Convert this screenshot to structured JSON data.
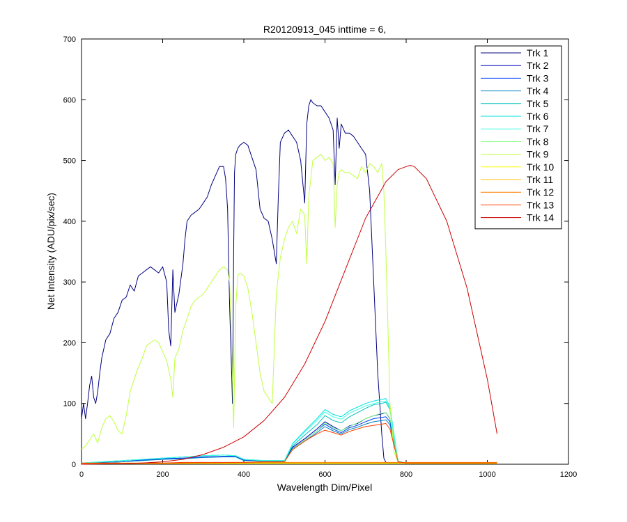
{
  "chart_data": {
    "type": "line",
    "title": "R20120913_045 inttime = 6,",
    "xlabel": "Wavelength Dim/Pixel",
    "ylabel": "Net Intensity (ADU/pix/sec)",
    "xlim": [
      0,
      1200
    ],
    "ylim": [
      0,
      700
    ],
    "xticks": [
      0,
      200,
      400,
      600,
      800,
      1000,
      1200
    ],
    "yticks": [
      0,
      100,
      200,
      300,
      400,
      500,
      600,
      700
    ],
    "grid": false,
    "legend_position": "top-right",
    "series": [
      {
        "name": "Trk 1",
        "color": "#00007f",
        "x": [
          0,
          5,
          10,
          15,
          20,
          25,
          30,
          35,
          40,
          45,
          50,
          60,
          70,
          80,
          90,
          100,
          110,
          120,
          130,
          140,
          150,
          160,
          170,
          180,
          190,
          200,
          210,
          215,
          220,
          225,
          230,
          240,
          250,
          255,
          260,
          270,
          280,
          290,
          300,
          310,
          320,
          330,
          340,
          350,
          355,
          360,
          365,
          370,
          372,
          375,
          377,
          380,
          385,
          390,
          400,
          410,
          420,
          430,
          440,
          450,
          460,
          470,
          475,
          480,
          485,
          490,
          500,
          510,
          520,
          530,
          540,
          550,
          555,
          560,
          565,
          570,
          580,
          590,
          600,
          610,
          620,
          625,
          630,
          635,
          640,
          650,
          660,
          670,
          680,
          690,
          700,
          710,
          720,
          730,
          740,
          745,
          750,
          755,
          760,
          765,
          770,
          780,
          800,
          850,
          900,
          950,
          1000,
          1024
        ],
        "y": [
          75,
          100,
          75,
          100,
          130,
          145,
          110,
          100,
          120,
          150,
          175,
          205,
          215,
          240,
          250,
          270,
          275,
          295,
          285,
          310,
          315,
          320,
          325,
          320,
          315,
          325,
          300,
          220,
          195,
          320,
          250,
          280,
          330,
          370,
          400,
          410,
          415,
          420,
          430,
          440,
          460,
          475,
          490,
          490,
          470,
          420,
          260,
          150,
          100,
          350,
          480,
          510,
          520,
          525,
          530,
          525,
          505,
          485,
          420,
          405,
          400,
          370,
          350,
          330,
          440,
          530,
          545,
          550,
          540,
          530,
          500,
          430,
          560,
          590,
          600,
          595,
          590,
          590,
          580,
          570,
          550,
          460,
          570,
          520,
          560,
          545,
          545,
          540,
          530,
          520,
          510,
          450,
          300,
          150,
          50,
          10,
          3,
          2,
          2,
          2,
          2,
          2,
          2,
          2,
          2,
          2,
          2,
          2
        ]
      },
      {
        "name": "Trk 2",
        "color": "#0000bf",
        "x": [
          0,
          50,
          100,
          150,
          200,
          250,
          300,
          350,
          380,
          400,
          450,
          500,
          520,
          550,
          580,
          600,
          620,
          640,
          660,
          680,
          700,
          720,
          740,
          750,
          760,
          780,
          800,
          1024
        ],
        "y": [
          2,
          3,
          4,
          7,
          9,
          10,
          12,
          13,
          13,
          7,
          5,
          5,
          28,
          42,
          58,
          70,
          62,
          55,
          63,
          67,
          75,
          80,
          83,
          85,
          75,
          4,
          2,
          2
        ]
      },
      {
        "name": "Trk 3",
        "color": "#003fff",
        "x": [
          0,
          50,
          100,
          150,
          200,
          250,
          300,
          350,
          380,
          400,
          450,
          500,
          520,
          550,
          580,
          600,
          620,
          640,
          660,
          680,
          700,
          720,
          740,
          750,
          760,
          780,
          800,
          1024
        ],
        "y": [
          2,
          3,
          4,
          7,
          9,
          10,
          12,
          13,
          13,
          7,
          5,
          5,
          26,
          40,
          55,
          66,
          58,
          52,
          60,
          64,
          70,
          75,
          77,
          78,
          70,
          4,
          2,
          2
        ]
      },
      {
        "name": "Trk 4",
        "color": "#007fbf",
        "x": [
          0,
          50,
          100,
          150,
          200,
          250,
          300,
          350,
          380,
          400,
          450,
          500,
          520,
          550,
          580,
          600,
          620,
          640,
          660,
          680,
          700,
          720,
          740,
          750,
          760,
          780,
          800,
          1024
        ],
        "y": [
          2,
          3,
          4,
          6,
          8,
          9,
          11,
          12,
          12,
          6,
          5,
          5,
          24,
          38,
          52,
          62,
          55,
          50,
          57,
          61,
          66,
          70,
          72,
          73,
          65,
          4,
          2,
          2
        ]
      },
      {
        "name": "Trk 5",
        "color": "#00bfbf",
        "x": [
          0,
          50,
          100,
          150,
          200,
          250,
          300,
          350,
          380,
          400,
          450,
          500,
          520,
          550,
          580,
          600,
          620,
          640,
          660,
          680,
          700,
          720,
          740,
          750,
          760,
          780,
          800,
          1024
        ],
        "y": [
          2,
          4,
          6,
          8,
          10,
          12,
          14,
          15,
          14,
          8,
          6,
          6,
          30,
          48,
          65,
          80,
          72,
          68,
          78,
          85,
          92,
          98,
          100,
          102,
          90,
          5,
          2,
          2
        ]
      },
      {
        "name": "Trk 6",
        "color": "#00dfdf",
        "x": [
          0,
          50,
          100,
          150,
          200,
          250,
          300,
          350,
          380,
          400,
          450,
          500,
          520,
          550,
          580,
          600,
          620,
          640,
          660,
          680,
          700,
          720,
          740,
          750,
          760,
          780,
          800,
          1024
        ],
        "y": [
          2,
          4,
          6,
          8,
          10,
          12,
          14,
          15,
          14,
          8,
          6,
          6,
          34,
          55,
          75,
          90,
          82,
          78,
          88,
          94,
          100,
          104,
          107,
          108,
          95,
          5,
          2,
          2
        ]
      },
      {
        "name": "Trk 7",
        "color": "#3fffdf",
        "x": [
          0,
          50,
          100,
          150,
          200,
          250,
          300,
          350,
          380,
          400,
          450,
          500,
          520,
          550,
          580,
          600,
          620,
          640,
          660,
          680,
          700,
          720,
          740,
          750,
          760,
          780,
          800,
          1024
        ],
        "y": [
          2,
          4,
          6,
          8,
          10,
          12,
          14,
          15,
          14,
          8,
          6,
          6,
          33,
          53,
          72,
          86,
          78,
          74,
          84,
          90,
          96,
          100,
          103,
          104,
          92,
          5,
          2,
          2
        ]
      },
      {
        "name": "Trk 8",
        "color": "#7fff7f",
        "x": [
          0,
          100,
          200,
          300,
          400,
          500,
          520,
          550,
          580,
          600,
          620,
          640,
          660,
          680,
          700,
          720,
          740,
          750,
          760,
          780,
          800,
          1024
        ],
        "y": [
          1,
          1,
          2,
          2,
          2,
          3,
          25,
          40,
          55,
          68,
          60,
          55,
          62,
          68,
          75,
          80,
          84,
          85,
          76,
          4,
          2,
          2
        ]
      },
      {
        "name": "Trk 9",
        "color": "#bfff3f",
        "x": [
          0,
          10,
          20,
          30,
          40,
          50,
          60,
          70,
          80,
          90,
          100,
          110,
          120,
          130,
          140,
          150,
          160,
          170,
          180,
          190,
          200,
          210,
          220,
          225,
          230,
          240,
          250,
          260,
          270,
          280,
          290,
          300,
          310,
          320,
          330,
          340,
          350,
          360,
          365,
          370,
          375,
          380,
          385,
          390,
          400,
          410,
          420,
          430,
          440,
          450,
          460,
          470,
          480,
          490,
          500,
          510,
          520,
          530,
          540,
          550,
          555,
          560,
          565,
          570,
          580,
          590,
          600,
          610,
          620,
          625,
          630,
          635,
          640,
          650,
          660,
          670,
          680,
          690,
          700,
          710,
          720,
          730,
          740,
          745,
          750,
          755,
          760,
          770,
          780,
          800,
          1024
        ],
        "y": [
          25,
          30,
          40,
          50,
          35,
          60,
          75,
          80,
          70,
          55,
          50,
          80,
          120,
          140,
          160,
          175,
          195,
          200,
          205,
          200,
          185,
          170,
          140,
          110,
          175,
          190,
          220,
          240,
          260,
          270,
          275,
          280,
          290,
          300,
          310,
          320,
          325,
          320,
          300,
          200,
          60,
          260,
          310,
          315,
          310,
          290,
          250,
          200,
          150,
          120,
          110,
          100,
          280,
          340,
          370,
          390,
          400,
          380,
          420,
          410,
          330,
          440,
          470,
          500,
          505,
          510,
          500,
          505,
          495,
          390,
          460,
          480,
          485,
          480,
          480,
          475,
          470,
          490,
          480,
          495,
          490,
          480,
          495,
          450,
          350,
          230,
          100,
          20,
          4,
          2,
          2
        ]
      },
      {
        "name": "Trk 10",
        "color": "#ffff00",
        "x": [
          0,
          200,
          400,
          600,
          800,
          1024
        ],
        "y": [
          1,
          1,
          1,
          1,
          1,
          1
        ]
      },
      {
        "name": "Trk 11",
        "color": "#ffbf00",
        "x": [
          0,
          200,
          400,
          600,
          800,
          1024
        ],
        "y": [
          1,
          1,
          2,
          2,
          2,
          2
        ]
      },
      {
        "name": "Trk 12",
        "color": "#ff7f00",
        "x": [
          0,
          200,
          400,
          600,
          800,
          1024
        ],
        "y": [
          2,
          2,
          3,
          3,
          3,
          3
        ]
      },
      {
        "name": "Trk 13",
        "color": "#ff3f00",
        "x": [
          0,
          50,
          100,
          150,
          200,
          250,
          300,
          350,
          400,
          450,
          500,
          520,
          550,
          580,
          600,
          620,
          640,
          660,
          680,
          700,
          720,
          740,
          750,
          760,
          780,
          800,
          1024
        ],
        "y": [
          1,
          1,
          1,
          2,
          2,
          3,
          3,
          3,
          3,
          4,
          4,
          24,
          38,
          50,
          56,
          52,
          48,
          54,
          58,
          62,
          64,
          66,
          67,
          58,
          4,
          2,
          2
        ]
      },
      {
        "name": "Trk 14",
        "color": "#cc0000",
        "x": [
          0,
          100,
          150,
          200,
          250,
          300,
          350,
          400,
          450,
          500,
          550,
          600,
          650,
          700,
          750,
          780,
          800,
          810,
          820,
          850,
          900,
          950,
          1000,
          1024
        ],
        "y": [
          0,
          1,
          2,
          4,
          8,
          16,
          28,
          45,
          72,
          110,
          165,
          235,
          320,
          405,
          465,
          485,
          490,
          492,
          490,
          470,
          400,
          290,
          140,
          50
        ]
      }
    ]
  }
}
